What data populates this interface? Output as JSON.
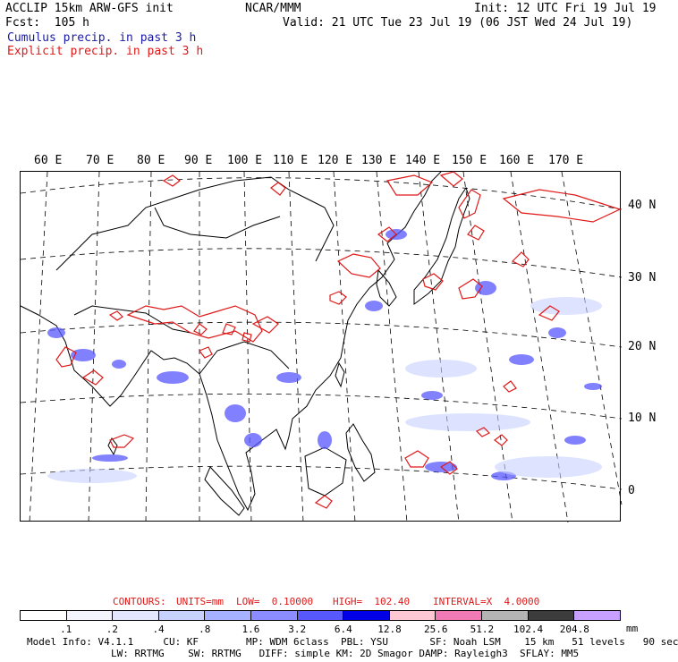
{
  "header": {
    "line1_left": "ACCLIP 15km ARW-GFS init",
    "line1_mid": "NCAR/MMM",
    "line1_right": "Init: 12 UTC Fri 19 Jul 19",
    "line2_left": "Fcst:  105 h",
    "line2_right": "Valid: 21 UTC Tue 23 Jul 19 (06 JST Wed 24 Jul 19)",
    "legend_cumulus": "Cumulus precip. in past 3 h",
    "legend_explicit": "Explicit precip. in past 3 h"
  },
  "colors": {
    "cumulus": "#1a1aa6",
    "explicit": "#e01818",
    "coast": "#000000"
  },
  "map": {
    "lon_labels": [
      "60 E",
      "70 E",
      "80 E",
      "90 E",
      "100 E",
      "110 E",
      "120 E",
      "130 E",
      "140 E",
      "150 E",
      "160 E",
      "170 E"
    ],
    "lat_labels": [
      "40 N",
      "30 N",
      "20 N",
      "10 N",
      "0"
    ]
  },
  "contours": {
    "label": "CONTOURS:",
    "units": "UNITS=mm",
    "low": "LOW=  0.10000",
    "high": "HIGH=  102.40",
    "interval": "INTERVAL=X  4.0000"
  },
  "colorbar": {
    "unit": "mm",
    "ticks": [
      ".1",
      ".2",
      ".4",
      ".8",
      "1.6",
      "3.2",
      "6.4",
      "12.8",
      "25.6",
      "51.2",
      "102.4",
      "204.8"
    ],
    "colors": [
      "#ffffff",
      "#f4f4ff",
      "#e2e6ff",
      "#c8d2ff",
      "#a6b2ff",
      "#8a8cff",
      "#5858ff",
      "#0000e6",
      "#ffc8d2",
      "#f07ab4",
      "#b4b4b4",
      "#3c3c3c",
      "#c8a0ff"
    ]
  },
  "footer": {
    "line1": "Model Info: V4.1.1     CU: KF        MP: WDM 6class  PBL: YSU       SF: Noah LSM    15 km   51 levels   90 sec",
    "line2": "LW: RRTMG    SW: RRTMG   DIFF: simple KM: 2D Smagor DAMP: Rayleigh3  SFLAY: MM5"
  }
}
